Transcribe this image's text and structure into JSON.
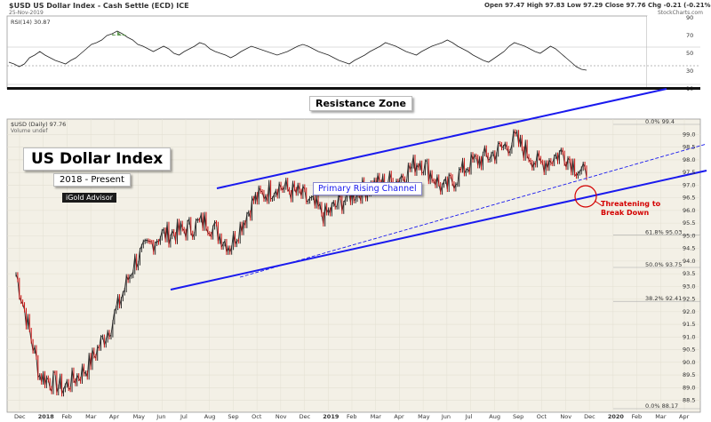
{
  "header": {
    "symbol_line": "$USD US Dollar Index - Cash Settle (ECD) ICE",
    "date_line": "25-Nov-2019",
    "ohlc": "Open 97.47 High 97.83 Low 97.29 Close 97.76 Chg -0.21 (-0.21%)",
    "site": "StockCharts.com"
  },
  "rsi": {
    "label": "RSI(14) 30.87",
    "scale": [
      "90",
      "70",
      "50",
      "30",
      "10"
    ],
    "levels": {
      "upper": 70,
      "mid": 50,
      "lower": 30
    }
  },
  "price": {
    "label": "$USD (Daily) 97.76",
    "sublabel": "Volume undef",
    "y_ticks": [
      "99.0",
      "98.5",
      "98.0",
      "97.5",
      "97.0",
      "96.5",
      "96.0",
      "95.5",
      "95.0",
      "94.5",
      "94.0",
      "93.5",
      "93.0",
      "92.5",
      "92.0",
      "91.5",
      "91.0",
      "90.5",
      "90.0",
      "89.5",
      "89.0",
      "88.5"
    ],
    "fib_labels": [
      "0.0% 99.4",
      "61.8% 95.03",
      "50.0% 93.75",
      "38.2% 92.41",
      "0.0% 88.17"
    ],
    "x_labels": [
      "Dec",
      "2018",
      "Feb",
      "Mar",
      "Apr",
      "May",
      "Jun",
      "Jul",
      "Aug",
      "Sep",
      "Oct",
      "Nov",
      "Dec",
      "2019",
      "Feb",
      "Mar",
      "Apr",
      "May",
      "Jun",
      "Jul",
      "Aug",
      "Sep",
      "Oct",
      "Nov",
      "Dec",
      "2020",
      "Feb",
      "Mar",
      "Apr"
    ]
  },
  "annotations": {
    "resistance": "Resistance Zone",
    "title": "US Dollar Index",
    "subtitle": "2018 - Present",
    "brand": "iGold Advisor",
    "channel": "Primary Rising Channel",
    "breakdown": "Threatening to\nBreak Down"
  },
  "colors": {
    "candle_up": "#2b2b2b",
    "candle_down": "#cc1111",
    "channel": "#1a1aee",
    "annotation_red": "#d40000",
    "rsi_fill": "#4a8c3a"
  },
  "chart_data": {
    "type": "line",
    "title": "US Dollar Index",
    "subtitle": "2018 - Present",
    "x": [
      "2017-12",
      "2018-01",
      "2018-02",
      "2018-03",
      "2018-04",
      "2018-05",
      "2018-06",
      "2018-07",
      "2018-08",
      "2018-09",
      "2018-10",
      "2018-11",
      "2018-12",
      "2019-01",
      "2019-02",
      "2019-03",
      "2019-04",
      "2019-05",
      "2019-06",
      "2019-07",
      "2019-08",
      "2019-09",
      "2019-10",
      "2019-11",
      "2019-12"
    ],
    "series": [
      {
        "values": [
          93.5,
          89.5,
          89.0,
          89.8,
          91.5,
          94.0,
          95.0,
          95.2,
          95.6,
          94.6,
          96.4,
          97.0,
          96.6,
          95.8,
          96.6,
          97.0,
          97.2,
          98.0,
          96.8,
          97.8,
          98.2,
          98.8,
          97.8,
          98.3,
          97.3
        ]
      }
    ],
    "ylim": [
      88.17,
      99.4
    ],
    "rsi_values": [
      40,
      38,
      35,
      38,
      45,
      48,
      52,
      48,
      45,
      42,
      40,
      38,
      42,
      45,
      50,
      55,
      60,
      62,
      65,
      70,
      72,
      75,
      72,
      68,
      65,
      60,
      58,
      55,
      52,
      55,
      58,
      55,
      50,
      48,
      52,
      55,
      58,
      62,
      60,
      55,
      52,
      50,
      48,
      45,
      48,
      52,
      55,
      58,
      56,
      54,
      52,
      50,
      48,
      50,
      52,
      55,
      58,
      60,
      58,
      55,
      52,
      50,
      48,
      45,
      42,
      40,
      38,
      42,
      45,
      48,
      52,
      55,
      58,
      62,
      60,
      58,
      55,
      52,
      50,
      48,
      52,
      55,
      58,
      60,
      62,
      65,
      62,
      58,
      55,
      52,
      48,
      45,
      42,
      40,
      44,
      48,
      52,
      58,
      62,
      60,
      58,
      55,
      52,
      50,
      54,
      58,
      55,
      50,
      45,
      40,
      35,
      32,
      31
    ]
  }
}
